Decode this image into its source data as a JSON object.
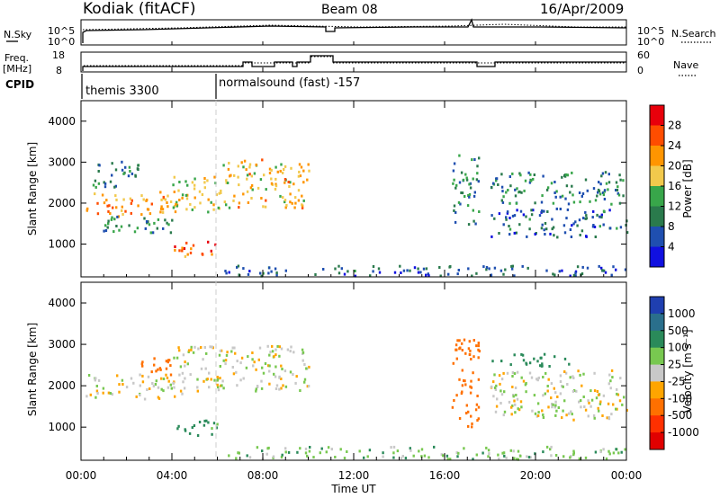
{
  "header": {
    "station": "Kodiak (fitACF)",
    "beam": "Beam 08",
    "date": "16/Apr/2009"
  },
  "nsky_panel": {
    "left_label": "N.Sky",
    "right_label": "N.Search",
    "ticks_left": [
      "10^5",
      "10^0"
    ],
    "ticks_right": [
      "10^5",
      "10^0"
    ]
  },
  "freq_panel": {
    "left_label_1": "Freq.",
    "left_label_2": "[MHz]",
    "right_label": "Nave",
    "ticks_left": [
      "18",
      "8"
    ],
    "ticks_right": [
      "60",
      "0"
    ]
  },
  "cpid": {
    "label": "CPID",
    "segments": [
      "themis 3300",
      "normalsound (fast) -157"
    ]
  },
  "x_axis": {
    "ticks": [
      "00:00",
      "04:00",
      "08:00",
      "12:00",
      "16:00",
      "20:00",
      "00:00"
    ],
    "label": "Time UT"
  },
  "chart_data": [
    {
      "type": "heatmap",
      "title": "",
      "xlabel": "",
      "ylabel": "Slant Range [km]",
      "ylim": [
        200,
        4500
      ],
      "y_ticks": [
        1000,
        2000,
        3000,
        4000
      ],
      "xlim": [
        0,
        24
      ],
      "colorbar": {
        "label": "Power [dB]",
        "ticks": [
          "28",
          "24",
          "20",
          "16",
          "12",
          "8",
          "4"
        ],
        "colors": [
          "#e8000b",
          "#ff4d00",
          "#ff9500",
          "#f2c94c",
          "#38a64a",
          "#2a7a4c",
          "#1f4fb0",
          "#1010e0"
        ]
      },
      "regions": [
        {
          "t0": 0.2,
          "t1": 4.3,
          "r0": 1700,
          "r1": 2300,
          "value": 22
        },
        {
          "t0": 0.2,
          "t1": 4.0,
          "r0": 1300,
          "r1": 1700,
          "value": 10
        },
        {
          "t0": 0.5,
          "t1": 2.5,
          "r0": 2400,
          "r1": 3100,
          "value": 8
        },
        {
          "t0": 4.0,
          "t1": 6.0,
          "r0": 1800,
          "r1": 2700,
          "value": 18
        },
        {
          "t0": 6.0,
          "t1": 10.0,
          "r0": 1900,
          "r1": 3100,
          "value": 20
        },
        {
          "t0": 4.0,
          "t1": 6.0,
          "r0": 700,
          "r1": 1100,
          "value": 26
        },
        {
          "t0": 16.3,
          "t1": 17.5,
          "r0": 1500,
          "r1": 3200,
          "value": 10
        },
        {
          "t0": 18.0,
          "t1": 24.0,
          "r0": 2000,
          "r1": 2800,
          "value": 10
        },
        {
          "t0": 18.0,
          "t1": 24.0,
          "r0": 1200,
          "r1": 1900,
          "value": 6
        },
        {
          "t0": 6.0,
          "t1": 24.0,
          "r0": 250,
          "r1": 500,
          "value": 6
        }
      ]
    },
    {
      "type": "heatmap",
      "title": "",
      "xlabel": "Time UT",
      "ylabel": "Slant Range [km]",
      "ylim": [
        200,
        4500
      ],
      "y_ticks": [
        1000,
        2000,
        3000,
        4000
      ],
      "xlim": [
        0,
        24
      ],
      "colorbar": {
        "label": "Velocity [m s⁻¹]",
        "ticks": [
          "1000",
          "500",
          "100",
          "25",
          "-25",
          "-100",
          "-500",
          "-1000"
        ],
        "colors": [
          "#1f3fb0",
          "#2a6f8c",
          "#2a8a5a",
          "#78c850",
          "#c8c8c8",
          "#ffa500",
          "#ff7000",
          "#ff3000",
          "#e00000"
        ]
      },
      "regions": [
        {
          "t0": 0.2,
          "t1": 4.5,
          "r0": 1700,
          "r1": 2300,
          "value": 0
        },
        {
          "t0": 4.0,
          "t1": 10.0,
          "r0": 1900,
          "r1": 3000,
          "value": 0
        },
        {
          "t0": 2.5,
          "t1": 4.0,
          "r0": 2200,
          "r1": 2700,
          "value": -200
        },
        {
          "t0": 4.0,
          "t1": 6.0,
          "r0": 800,
          "r1": 1200,
          "value": 150
        },
        {
          "t0": 16.3,
          "t1": 17.5,
          "r0": 1000,
          "r1": 3200,
          "value": -200
        },
        {
          "t0": 18.0,
          "t1": 21.5,
          "r0": 2500,
          "r1": 2800,
          "value": 200
        },
        {
          "t0": 18.0,
          "t1": 24.0,
          "r0": 1200,
          "r1": 2400,
          "value": 0
        },
        {
          "t0": 6.0,
          "t1": 24.0,
          "r0": 250,
          "r1": 550,
          "value": 60
        }
      ]
    }
  ]
}
